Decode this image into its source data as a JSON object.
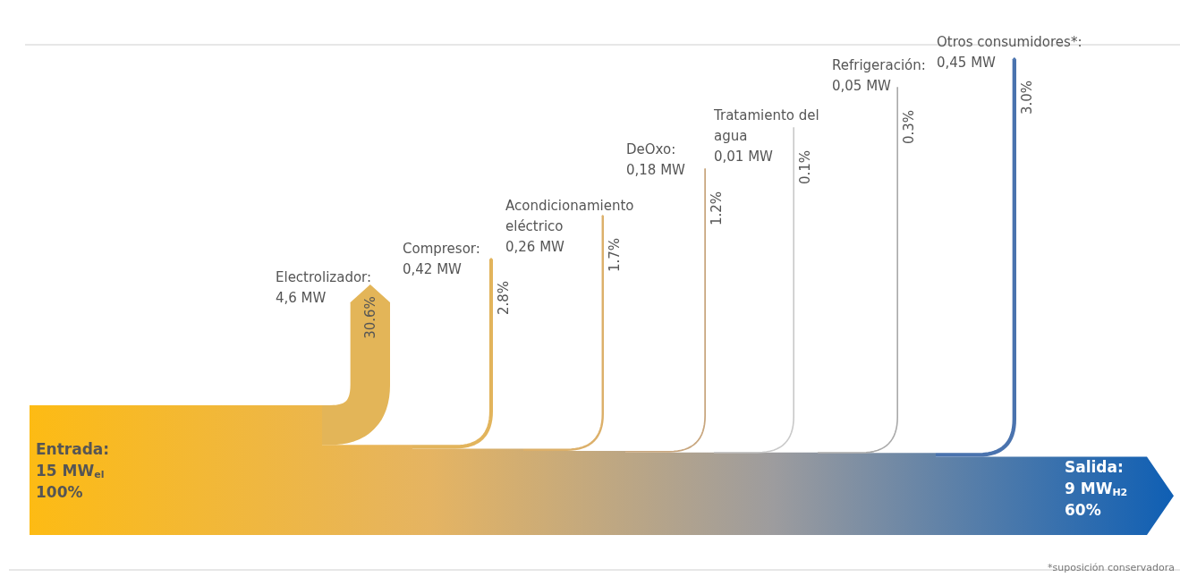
{
  "chart_data": {
    "type": "other",
    "categories": [
      "Electrolizador:\n4,6 MW",
      "Compresor:\n0,42 MW",
      "Acondicionamiento\neléctrico\n0,26 MW",
      "DeOxo:\n0,18 MW",
      "Tratamiento del\nagua\n0,01 MW",
      "Refrigeración:\n0,05 MW",
      "Otros consumidores*:\n0,45 MW"
    ],
    "values": [
      30.6,
      2.8,
      1.7,
      1.2,
      0.1,
      0.3,
      3.0
    ],
    "value_labels": [
      "30.6%",
      "2.8%",
      "1.7%",
      "1.2%",
      "0.1%",
      "0.3%",
      "3.0%"
    ],
    "colors": [
      "#e3b558",
      "#e2b45c",
      "#dcb06a",
      "#c8a67e",
      "#c9c9c9",
      "#a9a9a9",
      "#4a73ae"
    ],
    "annotations": [
      "Entrada:\n15 MW$_{el}$\n100%",
      "Salida:\n9 MW$_{H2}$\n60%",
      "*suposición conservadora"
    ]
  }
}
